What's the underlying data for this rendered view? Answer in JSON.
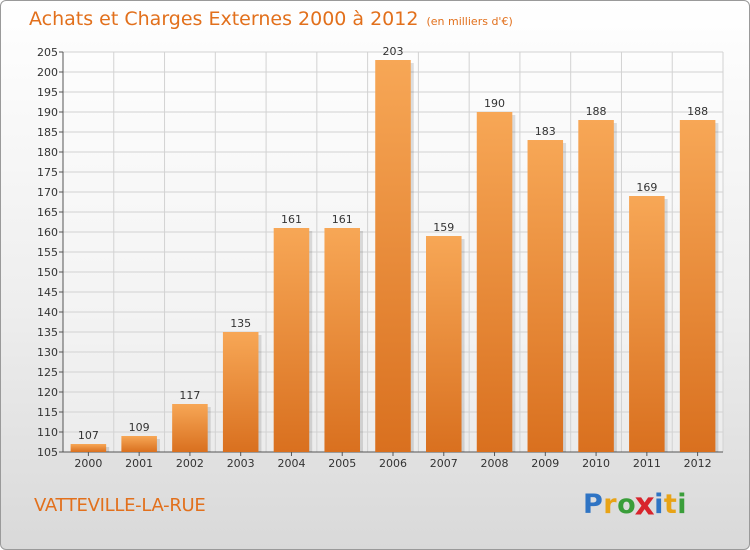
{
  "header": {
    "title": "Achats et Charges Externes 2000 à 2012",
    "subtitle": "(en milliers d'€)"
  },
  "footer": {
    "commune": "VATTEVILLE-LA-RUE",
    "logo_letters": [
      "P",
      "r",
      "o",
      "x",
      "i",
      "t",
      "i"
    ],
    "logo_colors": [
      "#2f74c4",
      "#e8a316",
      "#3a9e3a",
      "#d8242c",
      "#2f74c4",
      "#e8a316",
      "#3a9e3a"
    ]
  },
  "colors": {
    "accent": "#e2701c",
    "bar_top": "#f7a756",
    "bar_bottom": "#d9701f",
    "grid": "#d2d2d2"
  },
  "chart_data": {
    "type": "bar",
    "title": "Achats et Charges Externes 2000 à 2012",
    "subtitle": "(en milliers d'€)",
    "categories": [
      "2000",
      "2001",
      "2002",
      "2003",
      "2004",
      "2005",
      "2006",
      "2007",
      "2008",
      "2009",
      "2010",
      "2011",
      "2012"
    ],
    "values": [
      107,
      109,
      117,
      135,
      161,
      161,
      203,
      159,
      190,
      183,
      188,
      169,
      188
    ],
    "ylim": [
      105,
      205
    ],
    "ytick_step": 5,
    "grid": true,
    "xlabel": "",
    "ylabel": ""
  }
}
